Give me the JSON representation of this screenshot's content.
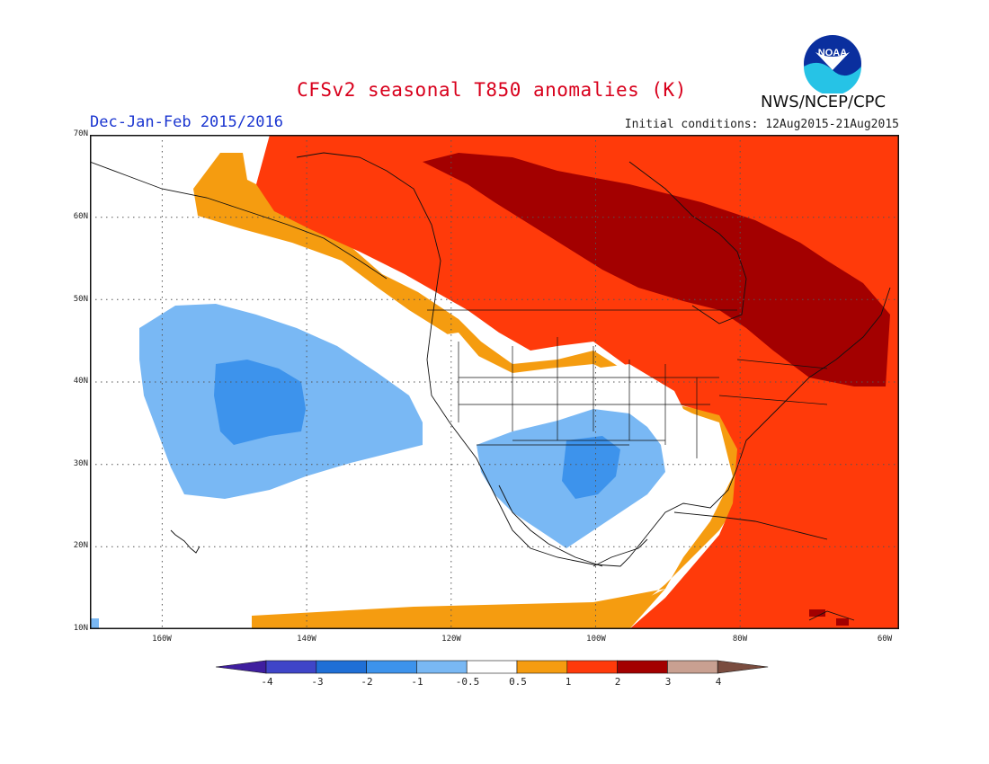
{
  "title": "CFSv2 seasonal T850 anomalies (K)",
  "season": "Dec-Jan-Feb 2015/2016",
  "initial_conditions": "Initial conditions: 12Aug2015-21Aug2015",
  "agency": "NWS/NCEP/CPC",
  "logo_text": "NOAA",
  "map": {
    "lon_range": [
      -172,
      -60
    ],
    "lat_range": [
      10,
      70
    ],
    "lat_ticks": [
      "10N",
      "20N",
      "30N",
      "40N",
      "50N",
      "60N",
      "70N"
    ],
    "lon_ticks": [
      "160W",
      "140W",
      "120W",
      "100W",
      "80W",
      "60W"
    ],
    "grid": "dotted"
  },
  "colorbar": {
    "labels": [
      "-4",
      "-3",
      "-2",
      "-1",
      "-0.5",
      "0.5",
      "1",
      "2",
      "3",
      "4"
    ],
    "colors": [
      "#3f1e9f",
      "#3f45c8",
      "#1f6fd6",
      "#3d93ec",
      "#79b8f4",
      "#ffffff",
      "#f59c10",
      "#ff3a0a",
      "#a30000",
      "#c9a091",
      "#7a4c3f"
    ]
  }
}
